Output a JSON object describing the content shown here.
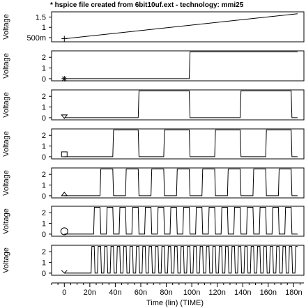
{
  "title": "* hspice file created from 6bit10uf.ext  - technology: mmi25",
  "xlabel": "Time (lin) (TIME)",
  "chart_data": {
    "type": "line",
    "title": "* hspice file created from 6bit10uf.ext  - technology: mmi25",
    "xlabel": "Time (lin) (TIME)",
    "xlim": [
      -10,
      188
    ],
    "x_ticks": [
      0,
      20,
      40,
      60,
      80,
      100,
      120,
      140,
      160,
      180
    ],
    "x_tick_labels": [
      "0",
      "20n",
      "40n",
      "60n",
      "80n",
      "100n",
      "120n",
      "140n",
      "160n",
      "180n"
    ],
    "panels": [
      {
        "ylabel": "Voltage",
        "marker": "plus",
        "ylim": [
          0.3,
          1.75
        ],
        "y_ticks": [
          0.5,
          1,
          1.5
        ],
        "y_tick_labels": [
          "500m",
          "1",
          "1.5"
        ],
        "kind": "ramp",
        "x": [
          0,
          183
        ],
        "y": [
          0.45,
          1.66
        ]
      },
      {
        "ylabel": "Voltage",
        "marker": "star",
        "ylim": [
          -0.2,
          2.6
        ],
        "y_ticks": [
          0,
          1,
          2
        ],
        "y_tick_labels": [
          "0",
          "1",
          "2"
        ],
        "kind": "square",
        "low": 0,
        "high": 2.5,
        "rise": 98,
        "period": 200,
        "end": 183
      },
      {
        "ylabel": "Voltage",
        "marker": "triangle-down",
        "ylim": [
          -0.2,
          2.6
        ],
        "y_ticks": [
          0,
          1,
          2
        ],
        "y_tick_labels": [
          "0",
          "1",
          "2"
        ],
        "kind": "square",
        "low": 0,
        "high": 2.5,
        "rise": 58,
        "period": 80,
        "end": 183
      },
      {
        "ylabel": "Voltage",
        "marker": "square",
        "ylim": [
          -0.2,
          2.6
        ],
        "y_ticks": [
          0,
          1,
          2
        ],
        "y_tick_labels": [
          "0",
          "1",
          "2"
        ],
        "kind": "square",
        "low": 0,
        "high": 2.5,
        "rise": 38,
        "period": 40,
        "end": 183
      },
      {
        "ylabel": "Voltage",
        "marker": "triangle-up",
        "ylim": [
          -0.2,
          2.6
        ],
        "y_ticks": [
          0,
          1,
          2
        ],
        "y_tick_labels": [
          "0",
          "1",
          "2"
        ],
        "kind": "square",
        "low": 0,
        "high": 2.5,
        "rise": 28,
        "period": 20,
        "end": 183
      },
      {
        "ylabel": "Voltage",
        "marker": "circle",
        "ylim": [
          -0.2,
          2.6
        ],
        "y_ticks": [
          0,
          1,
          2
        ],
        "y_tick_labels": [
          "0",
          "1",
          "2"
        ],
        "kind": "square",
        "low": 0,
        "high": 2.5,
        "rise": 23,
        "period": 10,
        "end": 183
      },
      {
        "ylabel": "Voltage",
        "marker": "x",
        "ylim": [
          -0.2,
          2.6
        ],
        "y_ticks": [
          0,
          1,
          2
        ],
        "y_tick_labels": [
          "0",
          "1",
          "2"
        ],
        "kind": "square",
        "low": 0,
        "high": 2.5,
        "rise": 21,
        "period": 5,
        "end": 183
      }
    ]
  }
}
